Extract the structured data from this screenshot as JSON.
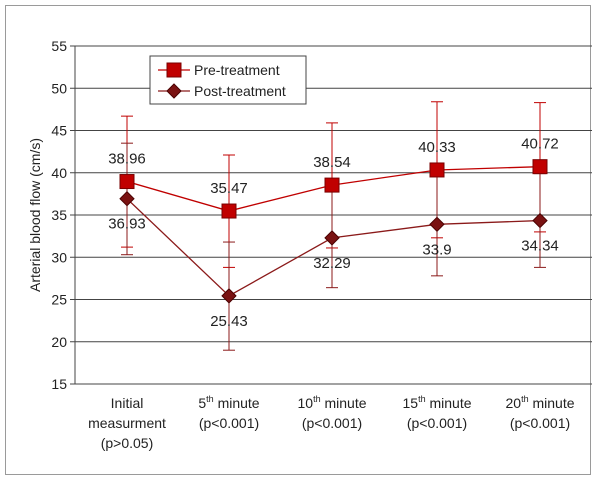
{
  "chart_data": {
    "type": "line",
    "title": "",
    "xlabel": "",
    "ylabel": "Arterial blood flow (cm/s)",
    "ylim": [
      15,
      55
    ],
    "yticks": [
      15,
      20,
      25,
      30,
      35,
      40,
      45,
      50,
      55
    ],
    "grid": "horizontal",
    "legend_position": "top-left",
    "categories": [
      {
        "lines": [
          "Initial",
          "measurment",
          "(p>0.05)"
        ]
      },
      {
        "lines": [
          "5th minute",
          "(p<0.001)"
        ]
      },
      {
        "lines": [
          "10th minute",
          "(p<0.001)"
        ]
      },
      {
        "lines": [
          "15th minute",
          "(p<0.001)"
        ]
      },
      {
        "lines": [
          "20th minute",
          "(p<0.001)"
        ]
      }
    ],
    "series": [
      {
        "name": "Pre-treatment",
        "marker": "square",
        "color": "#c00000",
        "marker_fill": "#c00000",
        "values": [
          38.96,
          35.47,
          38.54,
          40.33,
          40.72
        ],
        "labels": [
          "38.96",
          "35.47",
          "38.54",
          "40.33",
          "40.72"
        ],
        "error_low": [
          31.2,
          28.8,
          31.1,
          32.3,
          33.0
        ],
        "error_high": [
          46.7,
          42.1,
          45.9,
          48.4,
          48.3
        ]
      },
      {
        "name": "Post-treatment",
        "marker": "diamond",
        "color": "#8b1a1a",
        "marker_fill": "#7a1212",
        "values": [
          36.93,
          25.43,
          32.29,
          33.9,
          34.34
        ],
        "labels": [
          "36.93",
          "25.43",
          "32.29",
          "33.9",
          "34.34"
        ],
        "error_low": [
          30.3,
          19.0,
          26.4,
          27.8,
          28.8
        ],
        "error_high": [
          43.5,
          31.8,
          38.2,
          40.0,
          39.9
        ]
      }
    ]
  }
}
